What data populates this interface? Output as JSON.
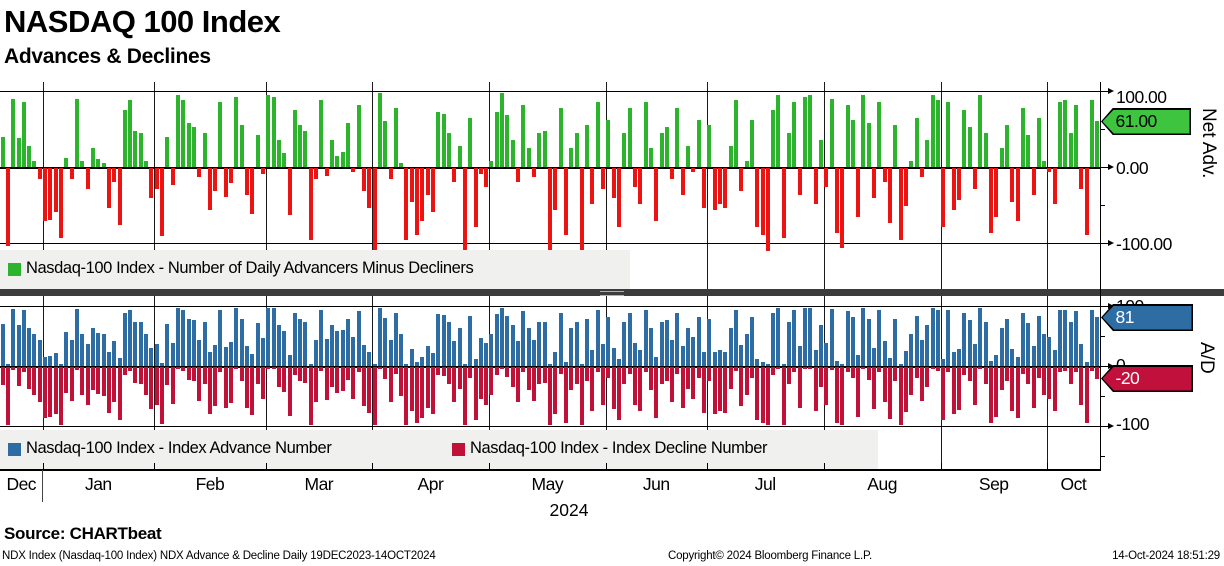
{
  "header": {
    "title": "NASDAQ 100 Index",
    "subtitle": "Advances & Declines"
  },
  "colors": {
    "advancer_green": "#2db42d",
    "decliner_red": "#ec1313",
    "advance_blue": "#2e6da4",
    "decline_crimson": "#c01238",
    "badge_green": "#3fc43f",
    "badge_blue": "#2e6da4",
    "badge_red": "#c1103c",
    "legend_bg": "#f0f0ee",
    "separator": "#3c3c3c"
  },
  "x_axis": {
    "year": "2024",
    "months": [
      {
        "label": "Dec",
        "days": 8
      },
      {
        "label": "Jan",
        "days": 21
      },
      {
        "label": "Feb",
        "days": 21
      },
      {
        "label": "Mar",
        "days": 20
      },
      {
        "label": "Apr",
        "days": 22
      },
      {
        "label": "May",
        "days": 22
      },
      {
        "label": "Jun",
        "days": 19
      },
      {
        "label": "Jul",
        "days": 22
      },
      {
        "label": "Aug",
        "days": 22
      },
      {
        "label": "Sep",
        "days": 20
      },
      {
        "label": "Oct",
        "days": 10
      }
    ]
  },
  "chart_data": [
    {
      "type": "bar",
      "panel": "top",
      "ylabel": "Net Adv.",
      "ylim": [
        -100,
        100
      ],
      "grid": true,
      "tick_labels": [
        "100.00",
        "0.00",
        "-100.00"
      ],
      "last_label": "61.00",
      "legend_position": "bottom-left",
      "series": [
        {
          "name": "Nasdaq-100 Index - Number of Daily Advancers Minus Decliners",
          "values": [
            40,
            -103,
            90,
            38,
            85,
            28,
            8,
            -15,
            -70,
            -68,
            -58,
            -92,
            12,
            -14,
            90,
            8,
            -28,
            25,
            10,
            5,
            -52,
            -18,
            -75,
            75,
            88,
            48,
            45,
            8,
            -40,
            -28,
            -90,
            40,
            -22,
            95,
            88,
            58,
            52,
            -12,
            45,
            -55,
            -30,
            85,
            -38,
            -20,
            92,
            55,
            -35,
            -60,
            42,
            -8,
            95,
            92,
            35,
            18,
            -62,
            75,
            55,
            48,
            -95,
            -15,
            88,
            -10,
            35,
            15,
            20,
            58,
            -5,
            82,
            -30,
            -52,
            -120,
            98,
            60,
            -15,
            78,
            5,
            -95,
            -45,
            -88,
            -70,
            -35,
            -58,
            72,
            70,
            45,
            -18,
            28,
            -118,
            65,
            -78,
            -8,
            -25,
            8,
            72,
            98,
            68,
            35,
            -18,
            82,
            25,
            -12,
            45,
            48,
            -118,
            -55,
            78,
            -88,
            25,
            45,
            -120,
            55,
            -48,
            85,
            -28,
            62,
            -40,
            -78,
            45,
            78,
            -25,
            -48,
            85,
            25,
            -70,
            45,
            52,
            -15,
            78,
            -35,
            28,
            -5,
            62,
            -52,
            55,
            -55,
            -48,
            -52,
            28,
            88,
            -30,
            8,
            62,
            -78,
            -88,
            -118,
            75,
            95,
            -92,
            45,
            85,
            -35,
            92,
            95,
            -48,
            35,
            -25,
            90,
            -85,
            -105,
            82,
            62,
            -65,
            95,
            58,
            -40,
            85,
            -18,
            -72,
            55,
            -95,
            -50,
            8,
            65,
            -12,
            35,
            95,
            88,
            -78,
            85,
            -55,
            -42,
            75,
            52,
            -28,
            95,
            45,
            -85,
            -65,
            25,
            55,
            -45,
            -70,
            78,
            42,
            -35,
            65,
            8,
            -5,
            -48,
            85,
            88,
            45,
            82,
            -28,
            -88,
            88,
            61
          ]
        }
      ]
    },
    {
      "type": "bar",
      "panel": "bottom",
      "ylabel": "A/D",
      "ylim": [
        -100,
        100
      ],
      "grid": true,
      "tick_labels": [
        "100",
        "0",
        "-100"
      ],
      "badges": {
        "advance": "81",
        "decline": "-20"
      },
      "legend_position": "bottom-left",
      "series": [
        {
          "name": "Nasdaq-100 Index - Index Advance Number",
          "values": [
            70,
            3,
            95,
            69,
            93,
            64,
            54,
            43,
            15,
            16,
            21,
            4,
            56,
            43,
            95,
            54,
            36,
            63,
            55,
            53,
            24,
            41,
            13,
            88,
            94,
            74,
            73,
            54,
            30,
            36,
            5,
            70,
            39,
            97,
            94,
            79,
            76,
            44,
            73,
            23,
            35,
            93,
            31,
            40,
            96,
            78,
            33,
            20,
            71,
            46,
            97,
            96,
            68,
            59,
            19,
            88,
            78,
            74,
            3,
            43,
            94,
            45,
            68,
            58,
            60,
            79,
            48,
            91,
            35,
            24,
            3,
            97,
            80,
            43,
            89,
            53,
            3,
            28,
            6,
            15,
            33,
            21,
            86,
            85,
            73,
            41,
            64,
            3,
            83,
            11,
            46,
            38,
            54,
            86,
            97,
            84,
            68,
            41,
            91,
            63,
            44,
            73,
            74,
            3,
            23,
            89,
            6,
            63,
            73,
            3,
            78,
            26,
            93,
            36,
            81,
            30,
            11,
            73,
            89,
            38,
            26,
            93,
            63,
            15,
            73,
            76,
            43,
            89,
            33,
            64,
            48,
            81,
            24,
            78,
            23,
            26,
            24,
            64,
            94,
            35,
            54,
            81,
            11,
            6,
            3,
            88,
            97,
            4,
            73,
            93,
            33,
            96,
            97,
            26,
            68,
            38,
            95,
            8,
            3,
            91,
            81,
            18,
            97,
            79,
            30,
            93,
            41,
            14,
            78,
            3,
            25,
            54,
            83,
            44,
            68,
            97,
            94,
            11,
            93,
            23,
            29,
            88,
            76,
            36,
            97,
            73,
            8,
            18,
            63,
            78,
            28,
            15,
            89,
            71,
            33,
            83,
            54,
            48,
            26,
            93,
            94,
            73,
            91,
            36,
            6,
            94,
            81
          ]
        },
        {
          "name": "Nasdaq-100 Index - Index Decline Number",
          "values": [
            -30,
            -97,
            -5,
            -31,
            -8,
            -36,
            -46,
            -58,
            -85,
            -84,
            -79,
            -96,
            -44,
            -57,
            -5,
            -46,
            -64,
            -38,
            -45,
            -48,
            -76,
            -59,
            -88,
            -13,
            -6,
            -26,
            -28,
            -46,
            -70,
            -64,
            -95,
            -30,
            -61,
            -3,
            -6,
            -21,
            -24,
            -56,
            -28,
            -78,
            -65,
            -8,
            -69,
            -60,
            -4,
            -23,
            -68,
            -80,
            -29,
            -54,
            -3,
            -4,
            -33,
            -41,
            -81,
            -13,
            -23,
            -26,
            -97,
            -58,
            -6,
            -55,
            -33,
            -43,
            -40,
            -21,
            -53,
            -9,
            -65,
            -76,
            -97,
            -3,
            -20,
            -58,
            -11,
            -48,
            -97,
            -73,
            -94,
            -85,
            -68,
            -79,
            -14,
            -15,
            -28,
            -59,
            -36,
            -97,
            -18,
            -89,
            -54,
            -63,
            -46,
            -14,
            -3,
            -16,
            -33,
            -59,
            -9,
            -38,
            -56,
            -28,
            -26,
            -97,
            -78,
            -11,
            -94,
            -38,
            -28,
            -97,
            -23,
            -74,
            -8,
            -64,
            -19,
            -70,
            -89,
            -28,
            -11,
            -63,
            -74,
            -8,
            -38,
            -85,
            -28,
            -24,
            -58,
            -11,
            -68,
            -36,
            -53,
            -19,
            -76,
            -23,
            -78,
            -74,
            -76,
            -36,
            -6,
            -65,
            -46,
            -19,
            -89,
            -94,
            -97,
            -13,
            -3,
            -96,
            -28,
            -8,
            -68,
            -4,
            -3,
            -74,
            -33,
            -63,
            -5,
            -93,
            -97,
            -9,
            -19,
            -83,
            -3,
            -21,
            -70,
            -8,
            -59,
            -86,
            -23,
            -97,
            -75,
            -46,
            -18,
            -56,
            -33,
            -3,
            -6,
            -89,
            -8,
            -78,
            -71,
            -13,
            -24,
            -64,
            -3,
            -28,
            -93,
            -83,
            -38,
            -23,
            -73,
            -85,
            -11,
            -29,
            -68,
            -18,
            -46,
            -53,
            -74,
            -8,
            -6,
            -28,
            -9,
            -64,
            -94,
            -6,
            -20
          ]
        }
      ]
    }
  ],
  "footer": {
    "source": "Source: CHARTbeat",
    "meta_left": "NDX Index (Nasdaq-100 Index) NDX Advance & Decline  Daily 19DEC2023-14OCT2024",
    "copyright": "Copyright© 2024 Bloomberg Finance L.P.",
    "timestamp": "14-Oct-2024 18:51:29"
  }
}
